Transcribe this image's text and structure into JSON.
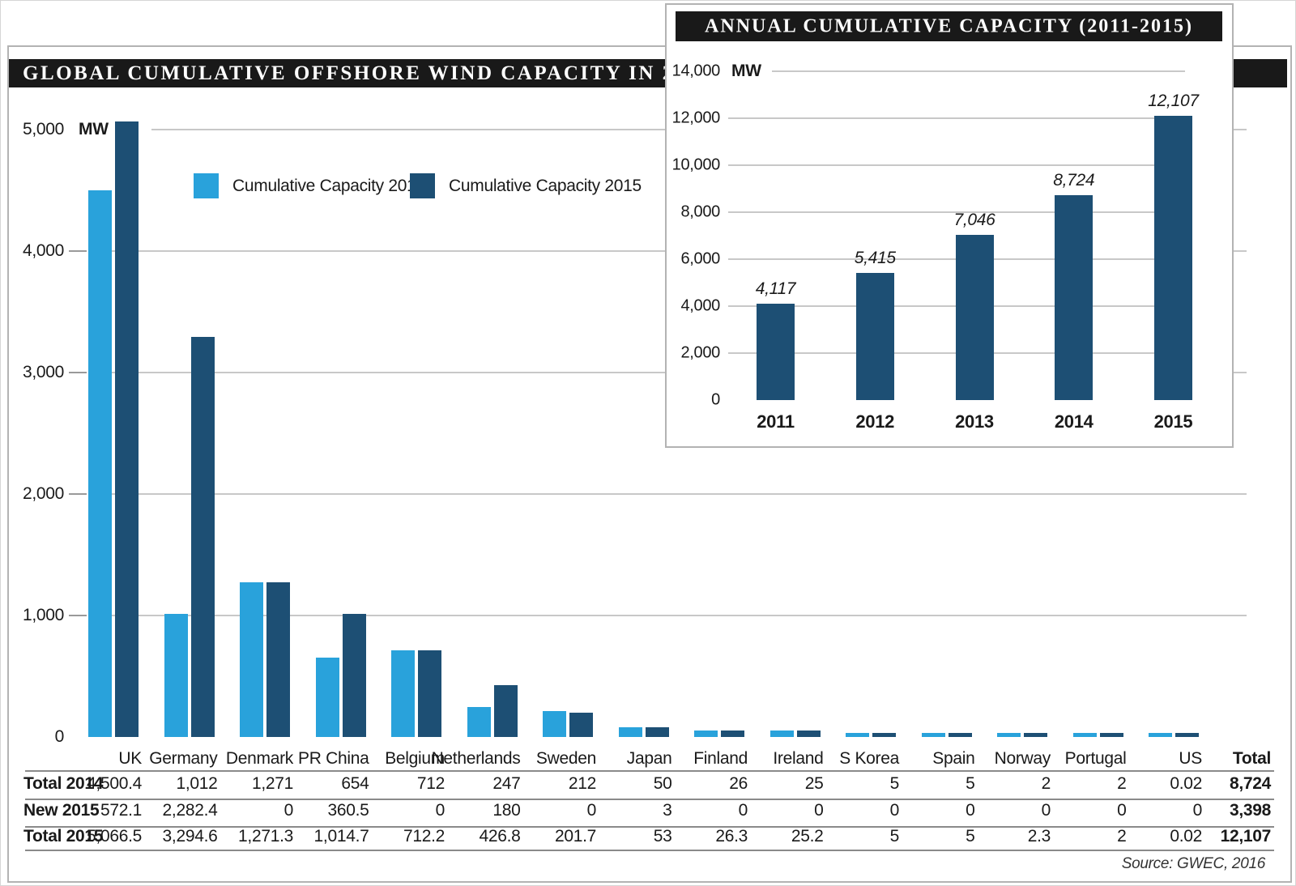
{
  "page": {
    "source_note": "Source: GWEC, 2016"
  },
  "colors": {
    "capacity_2014": "#29A2DB",
    "capacity_2015": "#1D4F74",
    "title_bar": "#191919",
    "gridline": "#c8c8c8"
  },
  "chart_data": [
    {
      "type": "bar",
      "title": "GLOBAL CUMULATIVE OFFSHORE WIND CAPACITY IN 2015",
      "unit": "MW",
      "categories": [
        "UK",
        "Germany",
        "Denmark",
        "PR China",
        "Belgium",
        "Netherlands",
        "Sweden",
        "Japan",
        "Finland",
        "Ireland",
        "S Korea",
        "Spain",
        "Norway",
        "Portugal",
        "US"
      ],
      "series": [
        {
          "name": "Cumulative Capacity 2014",
          "color": "#29A2DB",
          "values": [
            4500.4,
            1012,
            1271,
            654,
            712,
            247,
            212,
            50,
            26,
            25,
            5,
            5,
            2,
            2,
            0.02
          ]
        },
        {
          "name": "Cumulative Capacity 2015",
          "color": "#1D4F74",
          "values": [
            5066.5,
            3294.6,
            1271.3,
            1014.7,
            712.2,
            426.8,
            201.7,
            53,
            26.3,
            25.2,
            5,
            5,
            2.3,
            2,
            0.02
          ]
        }
      ],
      "ylim": [
        0,
        5000
      ],
      "yticks": [
        5000,
        4000,
        3000,
        2000,
        1000,
        0
      ],
      "ytick_labels": [
        "5,000",
        "4,000",
        "3,000",
        "2,000",
        "1,000",
        "0"
      ],
      "grid": true,
      "legend_position": "top-left-inside"
    },
    {
      "type": "bar",
      "title": "ANNUAL CUMULATIVE CAPACITY (2011-2015)",
      "unit": "MW",
      "categories": [
        "2011",
        "2012",
        "2013",
        "2014",
        "2015"
      ],
      "values": [
        4117,
        5415,
        7046,
        8724,
        12107
      ],
      "bar_labels": [
        "4,117",
        "5,415",
        "7,046",
        "8,724",
        "12,107"
      ],
      "color": "#1D4F74",
      "ylim": [
        0,
        14000
      ],
      "yticks": [
        14000,
        12000,
        10000,
        8000,
        6000,
        4000,
        2000,
        0
      ],
      "ytick_labels": [
        "14,000",
        "12,000",
        "10,000",
        "8,000",
        "6,000",
        "4,000",
        "2,000",
        "0"
      ],
      "grid": true,
      "legend_position": "none"
    }
  ],
  "table": {
    "columns": [
      "UK",
      "Germany",
      "Denmark",
      "PR China",
      "Belgium",
      "Netherlands",
      "Sweden",
      "Japan",
      "Finland",
      "Ireland",
      "S Korea",
      "Spain",
      "Norway",
      "Portugal",
      "US",
      "Total"
    ],
    "rows": [
      {
        "label": "Total 2014",
        "values": [
          "4,500.4",
          "1,012",
          "1,271",
          "654",
          "712",
          "247",
          "212",
          "50",
          "26",
          "25",
          "5",
          "5",
          "2",
          "2",
          "0.02"
        ],
        "total": "8,724"
      },
      {
        "label": "New 2015",
        "values": [
          "572.1",
          "2,282.4",
          "0",
          "360.5",
          "0",
          "180",
          "0",
          "3",
          "0",
          "0",
          "0",
          "0",
          "0",
          "0",
          "0"
        ],
        "total": "3,398"
      },
      {
        "label": "Total 2015",
        "values": [
          "5,066.5",
          "3,294.6",
          "1,271.3",
          "1,014.7",
          "712.2",
          "426.8",
          "201.7",
          "53",
          "26.3",
          "25.2",
          "5",
          "5",
          "2.3",
          "2",
          "0.02"
        ],
        "total": "12,107"
      }
    ]
  }
}
